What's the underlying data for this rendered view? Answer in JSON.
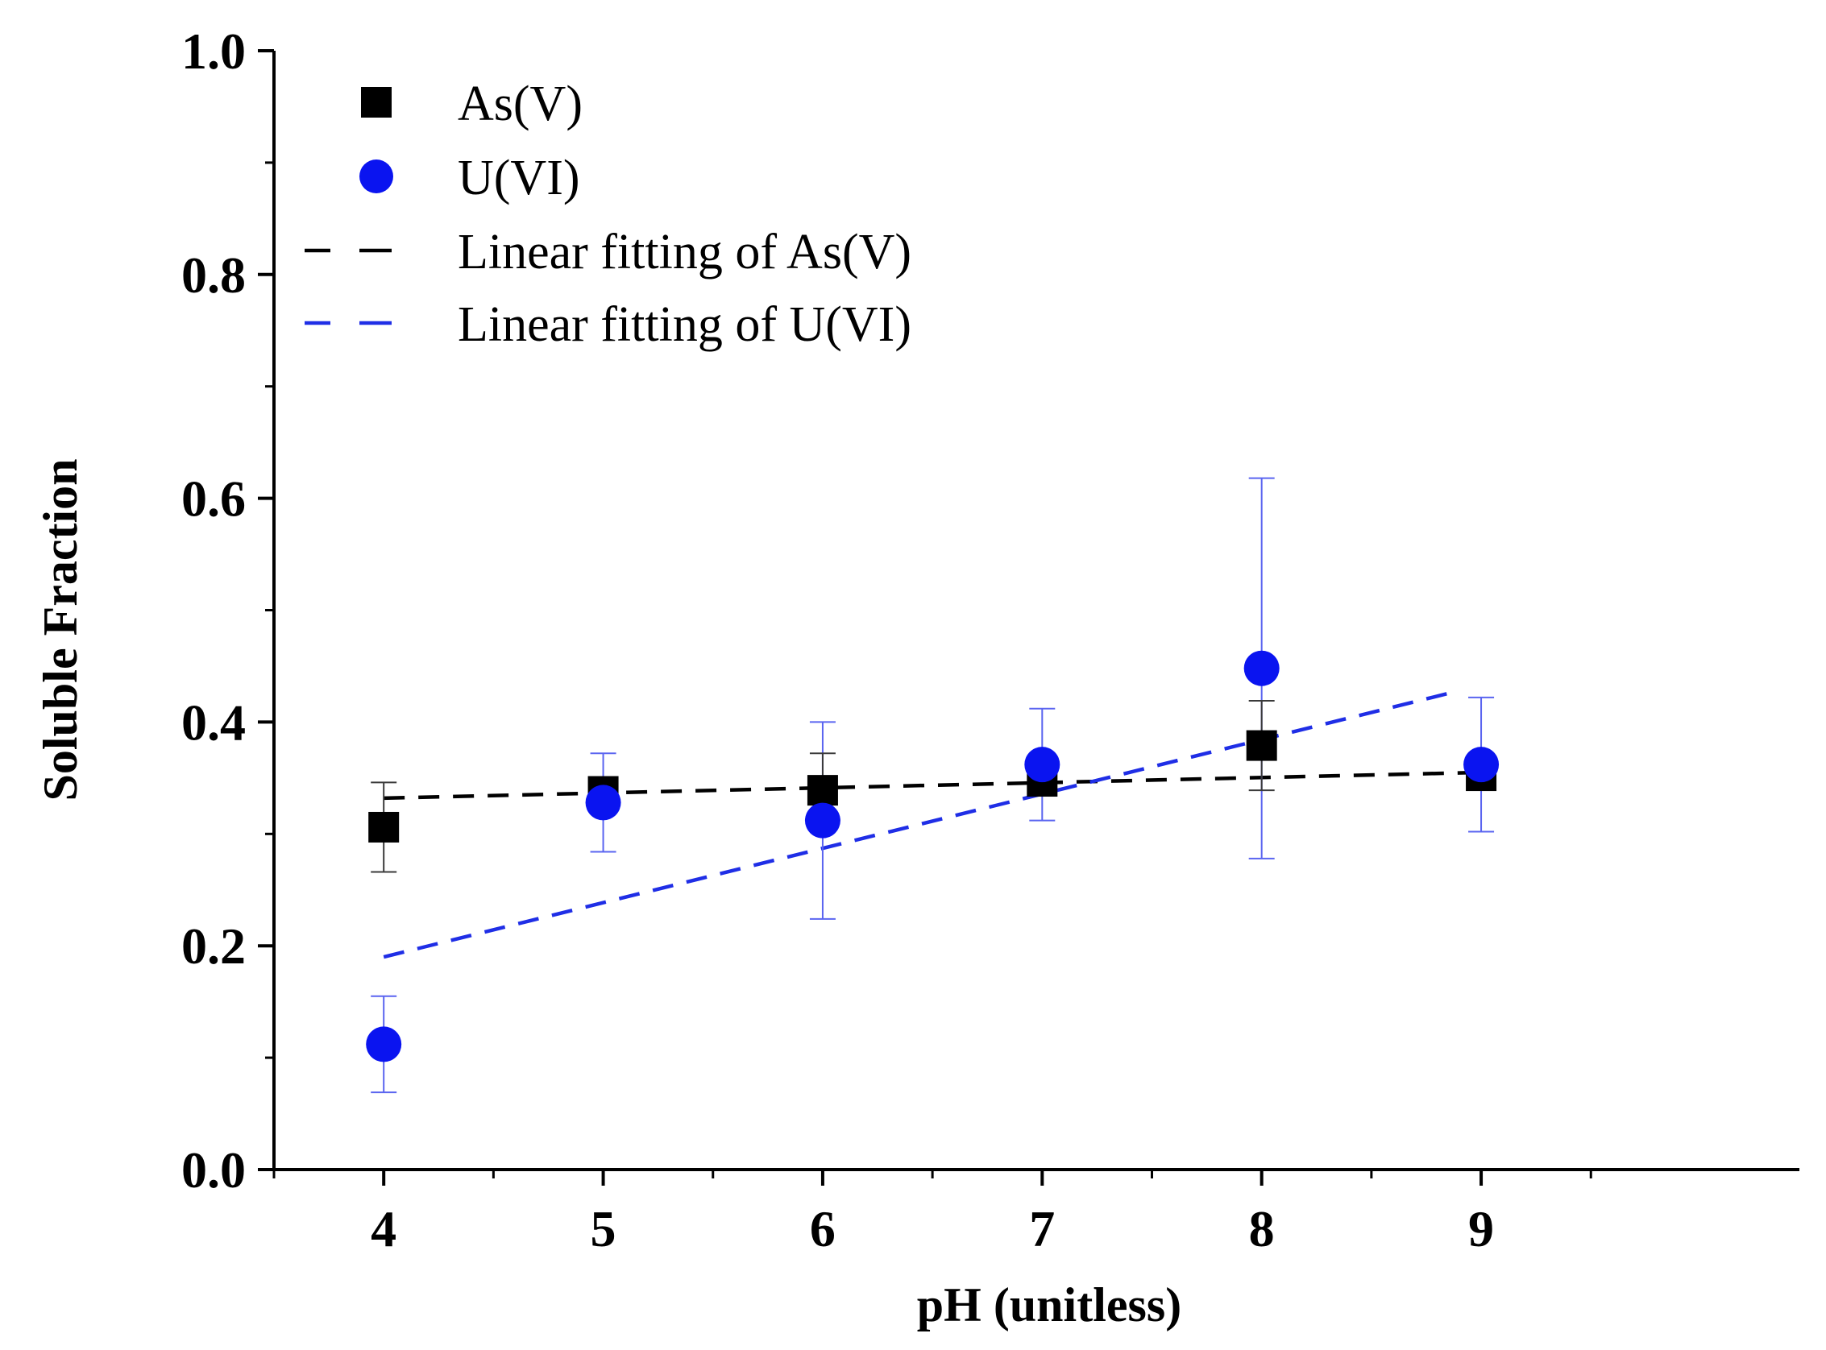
{
  "chart_data": {
    "type": "scatter",
    "title": "",
    "xlabel": "pH (unitless)",
    "ylabel": "Soluble Fraction",
    "xlim": [
      3.5,
      10.45
    ],
    "ylim": [
      0.0,
      1.0
    ],
    "x_ticks": [
      4,
      5,
      6,
      7,
      8,
      9
    ],
    "x_tick_labels": [
      "4",
      "5",
      "6",
      "7",
      "8",
      "9"
    ],
    "y_ticks": [
      0.0,
      0.2,
      0.4,
      0.6,
      0.8,
      1.0
    ],
    "y_tick_labels": [
      "0.0",
      "0.2",
      "0.4",
      "0.6",
      "0.8",
      "1.0"
    ],
    "grid": false,
    "legend_position": "top-left",
    "series": [
      {
        "name": "As(V)",
        "marker": "square",
        "color": "#000000",
        "x": [
          4,
          5,
          6,
          7,
          8,
          9
        ],
        "y": [
          0.306,
          0.338,
          0.339,
          0.347,
          0.379,
          0.352
        ],
        "error": [
          0.04,
          0.01,
          0.033,
          0.012,
          0.04,
          0.01
        ]
      },
      {
        "name": "U(VI)",
        "marker": "circle",
        "color": "#0a14f0",
        "x": [
          4,
          5,
          6,
          7,
          8,
          9
        ],
        "y": [
          0.112,
          0.328,
          0.312,
          0.362,
          0.448,
          0.362
        ],
        "error": [
          0.043,
          0.044,
          0.088,
          0.05,
          0.17,
          0.06
        ]
      }
    ],
    "fits": [
      {
        "name": "Linear fitting of As(V)",
        "style": "dashed",
        "color": "#000000",
        "x": [
          4,
          9
        ],
        "y": [
          0.332,
          0.355
        ]
      },
      {
        "name": "Linear fitting of U(VI)",
        "style": "dashed",
        "color": "#1f2ee6",
        "x": [
          4,
          8.9
        ],
        "y": [
          0.19,
          0.428
        ]
      }
    ],
    "legend": [
      {
        "label": "As(V)",
        "kind": "square",
        "color": "#000000"
      },
      {
        "label": "U(VI)",
        "kind": "circle",
        "color": "#0a14f0"
      },
      {
        "label": "Linear fitting of As(V)",
        "kind": "dash",
        "color": "#000000"
      },
      {
        "label": "Linear fitting of U(VI)",
        "kind": "dash",
        "color": "#1f2ee6"
      }
    ]
  }
}
